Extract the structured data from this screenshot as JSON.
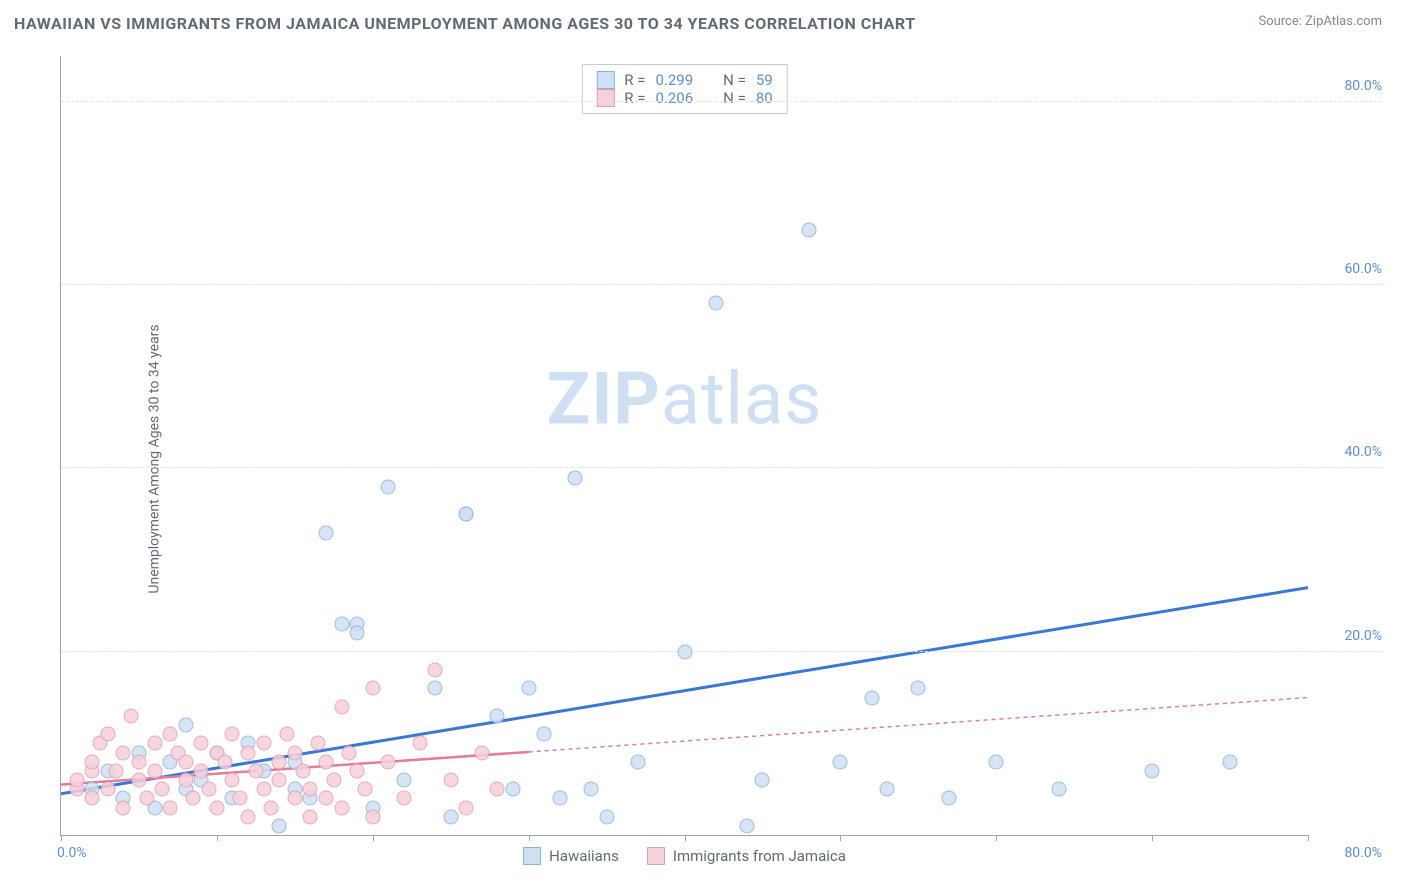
{
  "title": "HAWAIIAN VS IMMIGRANTS FROM JAMAICA UNEMPLOYMENT AMONG AGES 30 TO 34 YEARS CORRELATION CHART",
  "source": "Source: ZipAtlas.com",
  "ylabel": "Unemployment Among Ages 30 to 34 years",
  "watermark_bold": "ZIP",
  "watermark_rest": "atlas",
  "chart": {
    "type": "scatter",
    "xlim": [
      0,
      80
    ],
    "ylim": [
      0,
      85
    ],
    "y_ticks": [
      20,
      40,
      60,
      80
    ],
    "y_tick_labels": [
      "20.0%",
      "40.0%",
      "60.0%",
      "80.0%"
    ],
    "x_ticks": [
      0,
      10,
      20,
      30,
      40,
      50,
      60,
      70,
      80
    ],
    "x_origin_label": "0.0%",
    "x_max_label": "80.0%",
    "background_color": "#ffffff",
    "grid_color": "#dfe3e8",
    "axis_color": "#9aa4b0",
    "tick_label_color": "#5b8fd6",
    "title_color": "#5f6b78",
    "title_fontsize": 16,
    "label_fontsize": 14,
    "point_radius": 7.5
  },
  "series": [
    {
      "name": "Hawaiians",
      "fill": "#cfe0f2",
      "stroke": "#8ab3e0",
      "line_color": "#3a78d6",
      "line_width": 3,
      "line_dash": "none",
      "R": "0.299",
      "N": "59",
      "trend": {
        "x1": 0,
        "y1": 4.5,
        "x2": 80,
        "y2": 27
      },
      "points": [
        [
          2,
          5
        ],
        [
          3,
          7
        ],
        [
          4,
          4
        ],
        [
          5,
          9
        ],
        [
          6,
          3
        ],
        [
          7,
          8
        ],
        [
          8,
          5
        ],
        [
          8,
          12
        ],
        [
          9,
          6
        ],
        [
          10,
          9
        ],
        [
          11,
          4
        ],
        [
          12,
          10
        ],
        [
          13,
          7
        ],
        [
          14,
          1
        ],
        [
          15,
          8
        ],
        [
          15,
          5
        ],
        [
          16,
          4
        ],
        [
          17,
          33
        ],
        [
          18,
          23
        ],
        [
          19,
          23
        ],
        [
          19,
          22
        ],
        [
          20,
          3
        ],
        [
          21,
          38
        ],
        [
          22,
          6
        ],
        [
          24,
          16
        ],
        [
          25,
          2
        ],
        [
          26,
          35
        ],
        [
          26,
          35
        ],
        [
          28,
          13
        ],
        [
          29,
          5
        ],
        [
          30,
          16
        ],
        [
          31,
          11
        ],
        [
          32,
          4
        ],
        [
          33,
          39
        ],
        [
          34,
          5
        ],
        [
          35,
          2
        ],
        [
          37,
          8
        ],
        [
          40,
          20
        ],
        [
          42,
          58
        ],
        [
          44,
          1
        ],
        [
          45,
          6
        ],
        [
          48,
          66
        ],
        [
          50,
          8
        ],
        [
          52,
          15
        ],
        [
          53,
          5
        ],
        [
          55,
          16
        ],
        [
          57,
          4
        ],
        [
          60,
          8
        ],
        [
          64,
          5
        ],
        [
          70,
          7
        ],
        [
          75,
          8
        ]
      ]
    },
    {
      "name": "Immigrants from Jamaica",
      "fill": "#f6d1da",
      "stroke": "#e89bb0",
      "line_color": "#e37c99",
      "line_width": 2.5,
      "line_dash": "4 4",
      "R": "0.206",
      "N": "80",
      "trend_solid_end": 30,
      "trend": {
        "x1": 0,
        "y1": 5.5,
        "x2": 80,
        "y2": 15
      },
      "points": [
        [
          1,
          5
        ],
        [
          1,
          6
        ],
        [
          2,
          4
        ],
        [
          2,
          7
        ],
        [
          2,
          8
        ],
        [
          2.5,
          10
        ],
        [
          3,
          5
        ],
        [
          3,
          11
        ],
        [
          3.5,
          7
        ],
        [
          4,
          3
        ],
        [
          4,
          9
        ],
        [
          4.5,
          13
        ],
        [
          5,
          6
        ],
        [
          5,
          8
        ],
        [
          5.5,
          4
        ],
        [
          6,
          10
        ],
        [
          6,
          7
        ],
        [
          6.5,
          5
        ],
        [
          7,
          11
        ],
        [
          7,
          3
        ],
        [
          7.5,
          9
        ],
        [
          8,
          6
        ],
        [
          8,
          8
        ],
        [
          8.5,
          4
        ],
        [
          9,
          10
        ],
        [
          9,
          7
        ],
        [
          9.5,
          5
        ],
        [
          10,
          9
        ],
        [
          10,
          3
        ],
        [
          10.5,
          8
        ],
        [
          11,
          6
        ],
        [
          11,
          11
        ],
        [
          11.5,
          4
        ],
        [
          12,
          2
        ],
        [
          12,
          9
        ],
        [
          12.5,
          7
        ],
        [
          13,
          5
        ],
        [
          13,
          10
        ],
        [
          13.5,
          3
        ],
        [
          14,
          8
        ],
        [
          14,
          6
        ],
        [
          14.5,
          11
        ],
        [
          15,
          4
        ],
        [
          15,
          9
        ],
        [
          15.5,
          7
        ],
        [
          16,
          5
        ],
        [
          16,
          2
        ],
        [
          16.5,
          10
        ],
        [
          17,
          8
        ],
        [
          17,
          4
        ],
        [
          17.5,
          6
        ],
        [
          18,
          14
        ],
        [
          18,
          3
        ],
        [
          18.5,
          9
        ],
        [
          19,
          7
        ],
        [
          19.5,
          5
        ],
        [
          20,
          16
        ],
        [
          20,
          2
        ],
        [
          21,
          8
        ],
        [
          22,
          4
        ],
        [
          23,
          10
        ],
        [
          24,
          18
        ],
        [
          25,
          6
        ],
        [
          26,
          3
        ],
        [
          27,
          9
        ],
        [
          28,
          5
        ]
      ]
    }
  ],
  "legend": {
    "stats_prefix_R": "R =",
    "stats_prefix_N": "N ="
  }
}
